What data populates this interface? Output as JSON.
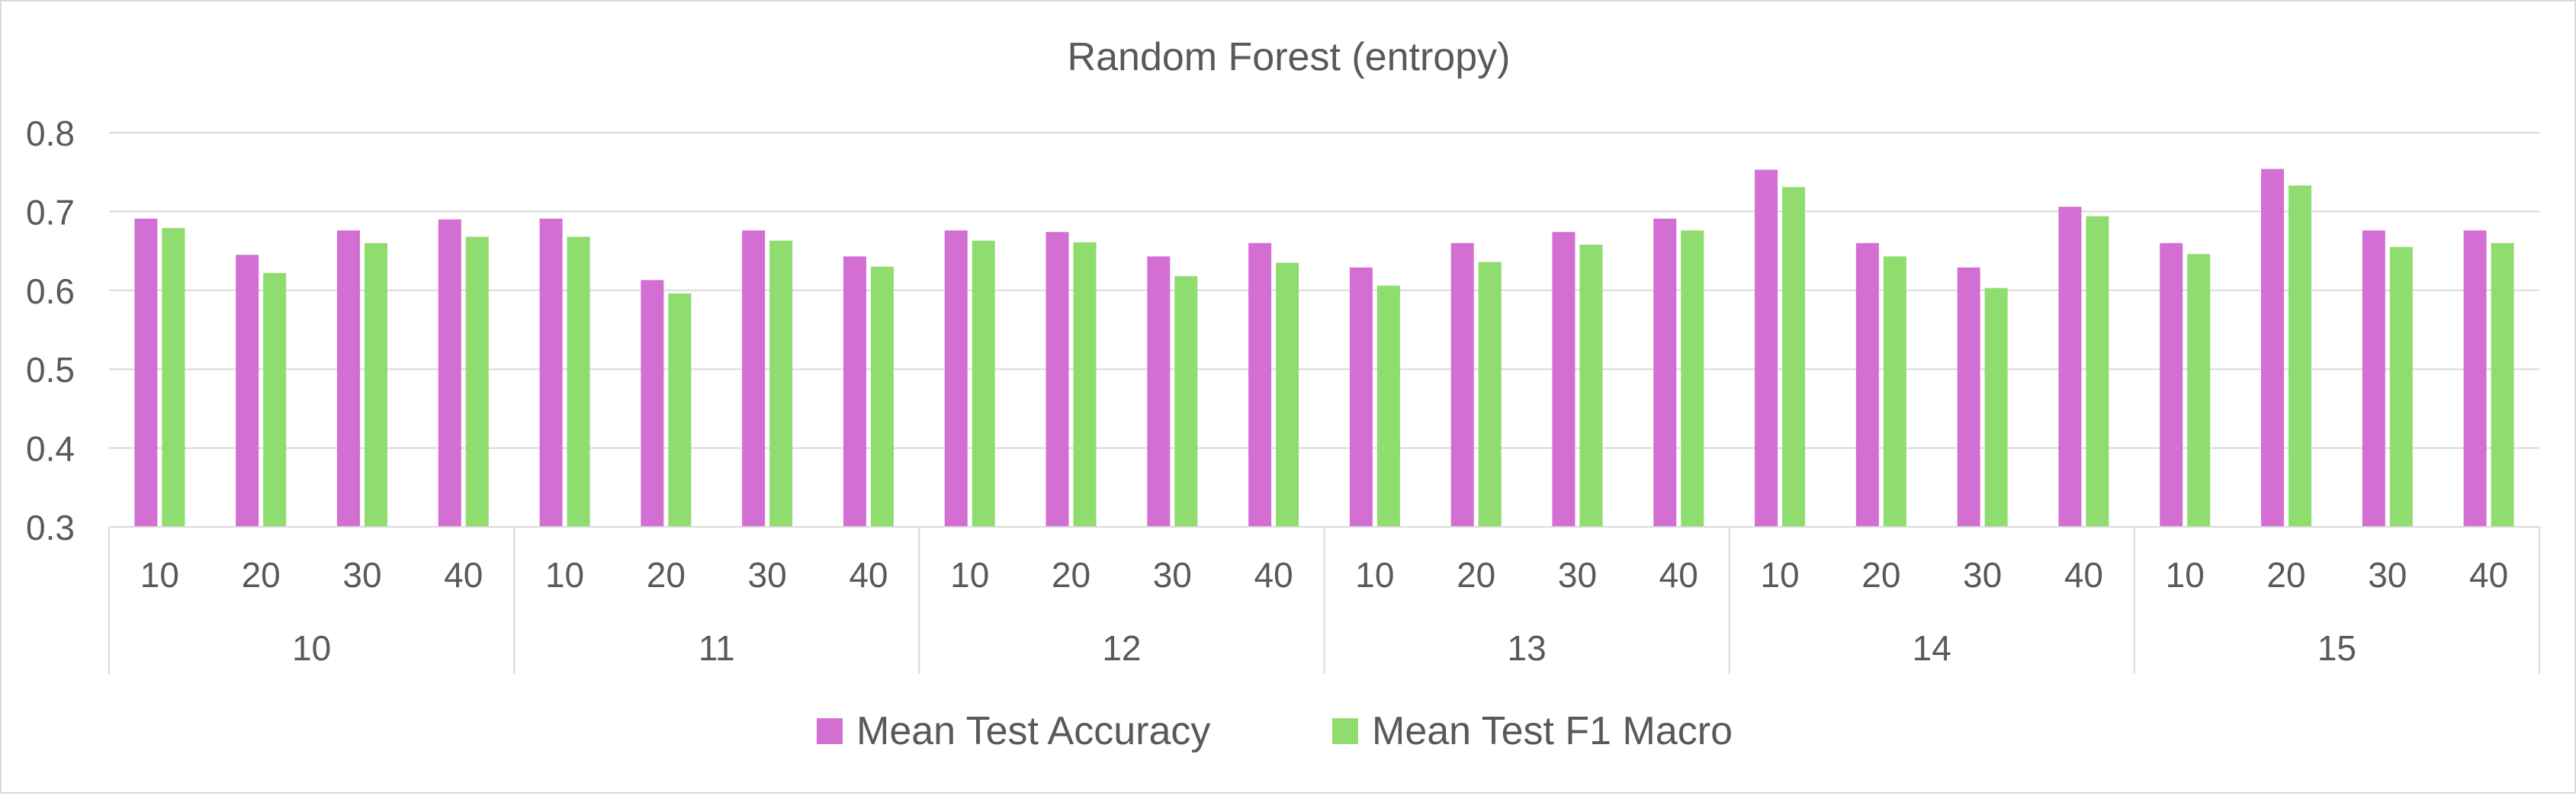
{
  "chart_data": {
    "type": "bar",
    "title": "Random Forest (entropy)",
    "xlabel": "",
    "ylabel": "",
    "ylim": [
      0.3,
      0.8
    ],
    "yticks": [
      "0.3",
      "0.4",
      "0.5",
      "0.6",
      "0.7",
      "0.8"
    ],
    "grid": true,
    "legend_position": "bottom",
    "groups": [
      {
        "label": "10",
        "categories": [
          "10",
          "20",
          "30",
          "40"
        ]
      },
      {
        "label": "11",
        "categories": [
          "10",
          "20",
          "30",
          "40"
        ]
      },
      {
        "label": "12",
        "categories": [
          "10",
          "20",
          "30",
          "40"
        ]
      },
      {
        "label": "13",
        "categories": [
          "10",
          "20",
          "30",
          "40"
        ]
      },
      {
        "label": "14",
        "categories": [
          "10",
          "20",
          "30",
          "40"
        ]
      },
      {
        "label": "15",
        "categories": [
          "10",
          "20",
          "30",
          "40"
        ]
      }
    ],
    "series": [
      {
        "name": "Mean Test Accuracy",
        "color": "#d36fd3",
        "values": [
          0.691,
          0.645,
          0.676,
          0.69,
          0.691,
          0.613,
          0.676,
          0.643,
          0.676,
          0.674,
          0.643,
          0.66,
          0.629,
          0.66,
          0.674,
          0.691,
          0.753,
          0.66,
          0.629,
          0.706,
          0.66,
          0.754,
          0.676,
          0.676
        ]
      },
      {
        "name": "Mean Test F1 Macro",
        "color": "#8fdc6f",
        "values": [
          0.679,
          0.622,
          0.66,
          0.668,
          0.668,
          0.596,
          0.663,
          0.63,
          0.663,
          0.661,
          0.618,
          0.635,
          0.606,
          0.636,
          0.658,
          0.676,
          0.731,
          0.643,
          0.603,
          0.694,
          0.646,
          0.733,
          0.655,
          0.66
        ]
      }
    ]
  }
}
